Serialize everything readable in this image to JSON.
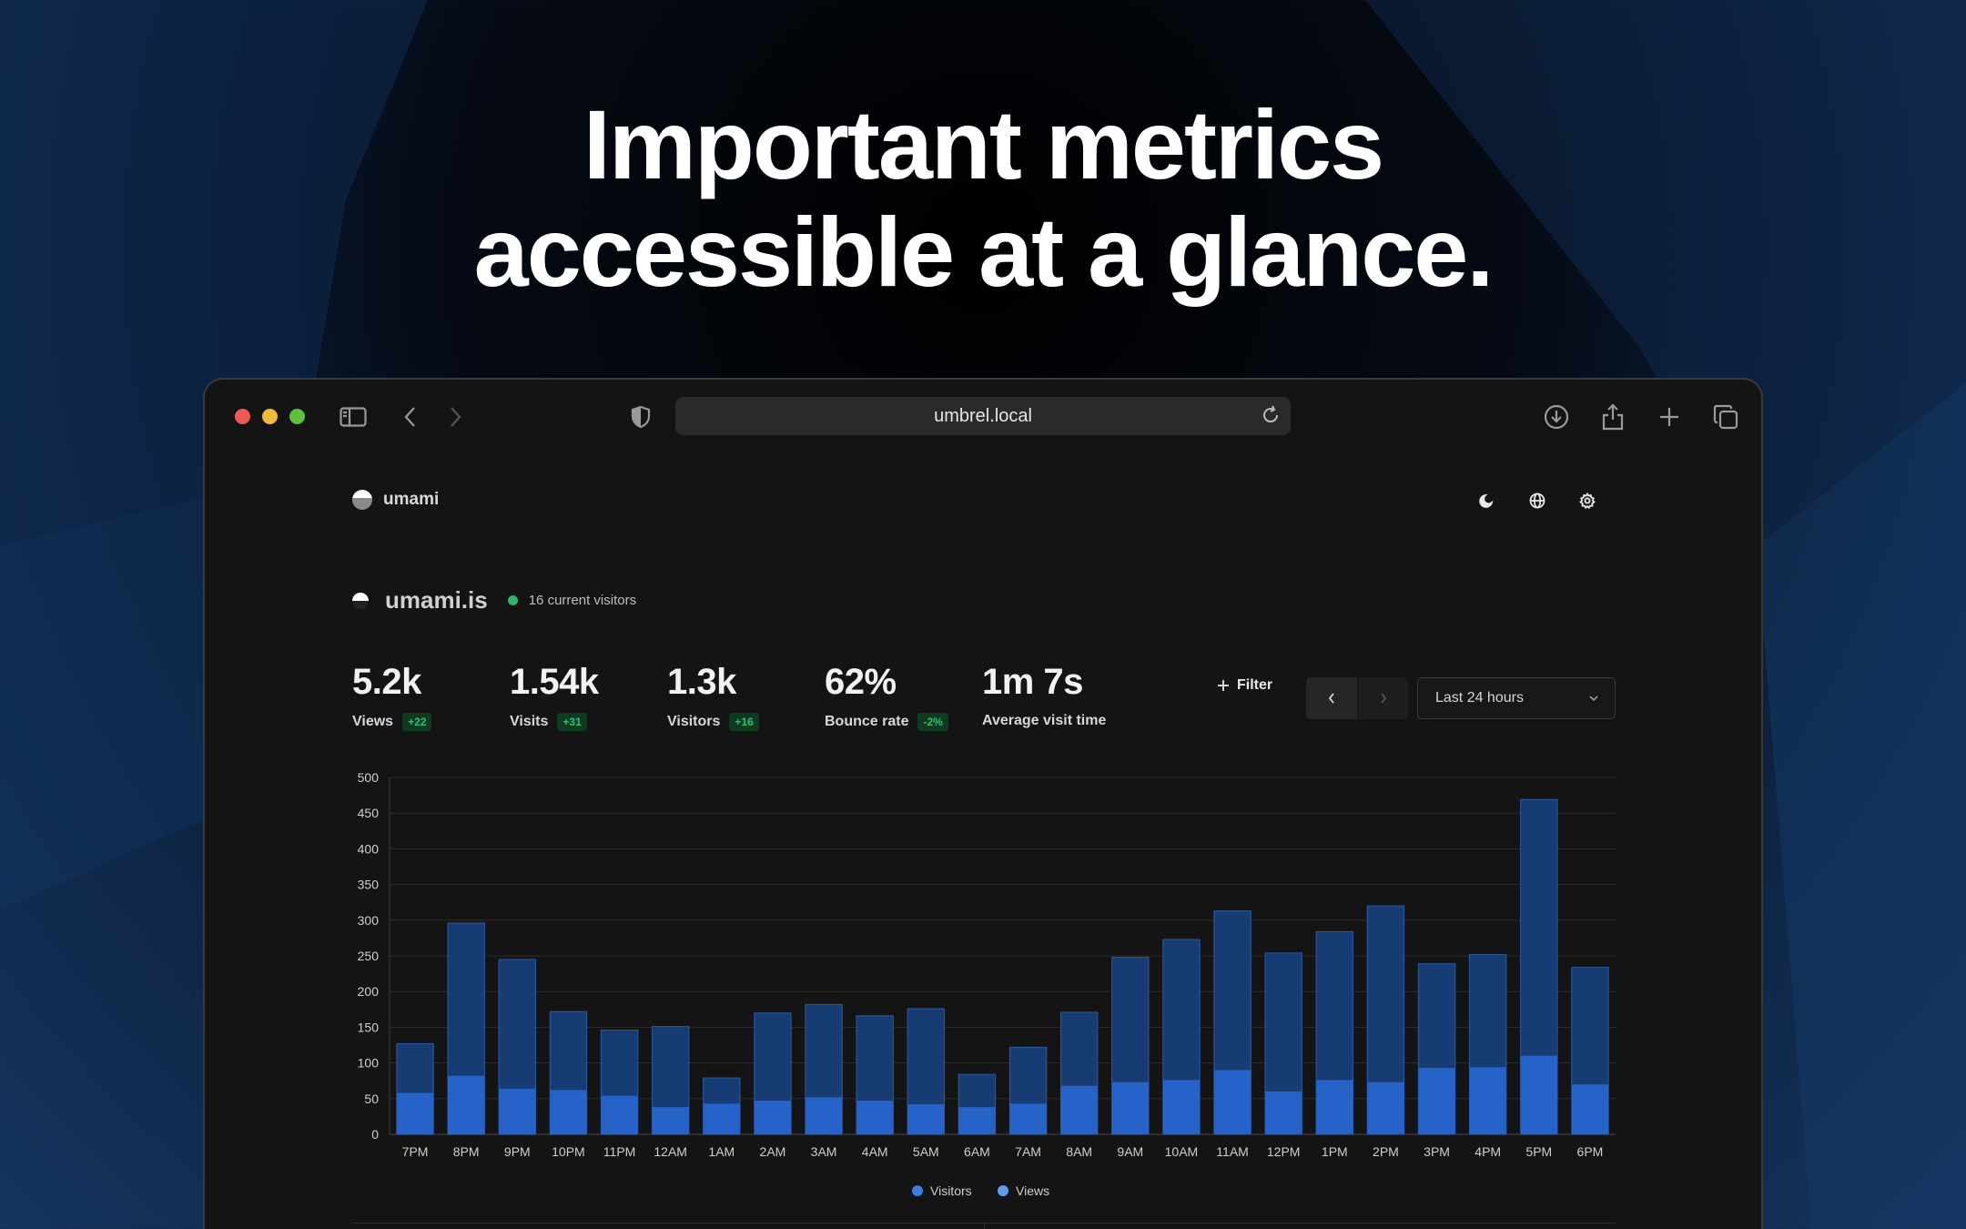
{
  "headline": {
    "line1": "Important metrics",
    "line2": "accessible at a glance."
  },
  "browser": {
    "url": "umbrel.local",
    "icons": [
      "sidebar-icon",
      "back-icon",
      "forward-icon",
      "shield-icon",
      "reload-icon",
      "download-icon",
      "share-icon",
      "plus-icon",
      "tabs-icon"
    ]
  },
  "app": {
    "brand": "umami",
    "header_icons": [
      "moon-icon",
      "globe-icon",
      "gear-icon"
    ]
  },
  "site": {
    "name": "umami.is",
    "live": "16 current visitors"
  },
  "metrics": [
    {
      "value": "5.2k",
      "label": "Views",
      "change": "+22"
    },
    {
      "value": "1.54k",
      "label": "Visits",
      "change": "+31"
    },
    {
      "value": "1.3k",
      "label": "Visitors",
      "change": "+16"
    },
    {
      "value": "62%",
      "label": "Bounce rate",
      "change": "-2%"
    },
    {
      "value": "1m 7s",
      "label": "Average visit time",
      "change": ""
    }
  ],
  "controls": {
    "filter": "Filter",
    "range": "Last 24 hours"
  },
  "colors": {
    "visitors": "#2563c9",
    "views": "#173c73",
    "views_border": "#2a5aa0",
    "accent_green": "#2cc36b"
  },
  "chart_data": {
    "type": "bar",
    "stacked_overlay": true,
    "categories": [
      "7PM",
      "8PM",
      "9PM",
      "10PM",
      "11PM",
      "12AM",
      "1AM",
      "2AM",
      "3AM",
      "4AM",
      "5AM",
      "6AM",
      "7AM",
      "8AM",
      "9AM",
      "10AM",
      "11AM",
      "12PM",
      "1PM",
      "2PM",
      "3PM",
      "4PM",
      "5PM",
      "6PM"
    ],
    "series": [
      {
        "name": "Visitors",
        "values": [
          58,
          82,
          64,
          62,
          54,
          38,
          43,
          47,
          52,
          47,
          42,
          38,
          43,
          68,
          73,
          76,
          90,
          60,
          76,
          73,
          93,
          94,
          110,
          70
        ]
      },
      {
        "name": "Views",
        "values": [
          127,
          296,
          245,
          172,
          146,
          151,
          79,
          170,
          182,
          166,
          176,
          84,
          122,
          171,
          248,
          273,
          313,
          254,
          284,
          320,
          239,
          252,
          469,
          234
        ]
      }
    ],
    "ylim": [
      0,
      500
    ],
    "yticks": [
      0,
      50,
      100,
      150,
      200,
      250,
      300,
      350,
      400,
      450,
      500
    ],
    "grid": true,
    "legend": "bottom-center"
  }
}
